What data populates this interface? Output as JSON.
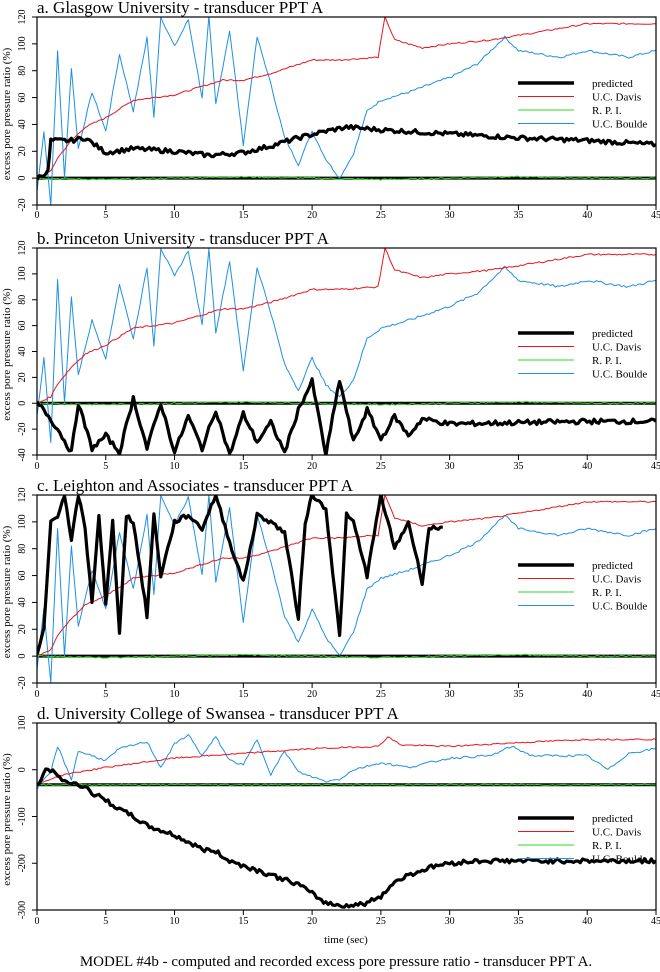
{
  "caption": "MODEL #4b - computed and recorded excess pore pressure ratio - transducer PPT A.",
  "xlabel": "time (sec)",
  "ylabel": "excess pore pressure ratio  (%)",
  "legend": [
    {
      "label": "predicted",
      "color": "#000000",
      "width": 3.5
    },
    {
      "label": "U.C. Davis",
      "color": "#e8161b",
      "width": 1
    },
    {
      "label": "R. P. I.",
      "color": "#2edb1f",
      "width": 1
    },
    {
      "label": "U.C. Boulde",
      "color": "#1e90e6",
      "width": 1
    }
  ],
  "colors": {
    "predicted": "#000000",
    "ucdavis": "#e8161b",
    "rpi": "#2edb1f",
    "boulder": "#1e90e6"
  },
  "chart_data": [
    {
      "type": "line",
      "title": "a. Glasgow University - transducer PPT A",
      "xlabel": "time (sec)",
      "ylabel": "excess pore pressure ratio (%)",
      "xlim": [
        0,
        45
      ],
      "ylim": [
        -20,
        120
      ],
      "xticks": [
        0,
        5,
        10,
        15,
        20,
        25,
        30,
        35,
        40,
        45
      ],
      "yticks": [
        -20,
        0,
        20,
        40,
        60,
        80,
        100,
        120
      ],
      "legend_position": "right-middle",
      "series": [
        {
          "name": "predicted",
          "x": [
            0,
            0.8,
            1.0,
            2.5,
            3.5,
            5,
            7,
            10,
            12.5,
            15,
            17,
            19,
            21,
            22.5,
            25,
            30,
            35,
            40,
            45
          ],
          "y": [
            0,
            5,
            28,
            28,
            30,
            19,
            22,
            20,
            17,
            19,
            24,
            30,
            35,
            38,
            36,
            33,
            30,
            28,
            25
          ]
        },
        {
          "name": "U.C. Davis",
          "x": [
            0,
            1.0,
            1.5,
            2.5,
            3.5,
            5,
            7,
            10,
            13.5,
            15,
            17,
            20,
            22,
            24.8,
            25.3,
            26,
            28,
            30,
            33,
            36,
            40,
            45
          ],
          "y": [
            0,
            5,
            15,
            28,
            38,
            45,
            58,
            62,
            73,
            73,
            78,
            88,
            88,
            90,
            120,
            103,
            97,
            100,
            103,
            108,
            115,
            115
          ]
        },
        {
          "name": "R. P. I.",
          "x": [
            0,
            5,
            10,
            15,
            20,
            25,
            30,
            35,
            40,
            45
          ],
          "y": [
            0,
            -1,
            0,
            1,
            0,
            -1,
            0,
            1,
            0,
            0
          ]
        },
        {
          "name": "U.C. Boulder",
          "x": [
            0,
            0.5,
            1.0,
            1.5,
            2.0,
            2.5,
            3,
            4,
            5,
            6,
            7,
            8,
            8.5,
            9,
            10,
            11,
            12,
            12.5,
            13,
            14,
            15,
            16,
            17,
            18,
            19,
            20,
            21,
            22,
            23,
            24,
            25,
            27,
            30,
            32,
            34,
            35,
            38,
            40,
            43,
            45
          ],
          "y": [
            -10,
            35,
            -20,
            95,
            0,
            82,
            22,
            64,
            35,
            92,
            50,
            105,
            45,
            120,
            98,
            118,
            60,
            120,
            55,
            110,
            25,
            105,
            70,
            30,
            10,
            35,
            14,
            0,
            18,
            50,
            58,
            64,
            75,
            85,
            105,
            95,
            90,
            95,
            90,
            95
          ]
        }
      ]
    },
    {
      "type": "line",
      "title": "b. Princeton University - transducer PPT A",
      "xlabel": "time (sec)",
      "ylabel": "excess pore pressure ratio (%)",
      "xlim": [
        0,
        45
      ],
      "ylim": [
        -40,
        120
      ],
      "xticks": [
        0,
        5,
        10,
        15,
        20,
        25,
        30,
        35,
        40,
        45
      ],
      "yticks": [
        -40,
        -20,
        0,
        20,
        40,
        60,
        80,
        100,
        120
      ],
      "legend_position": "right-middle",
      "series": [
        {
          "name": "predicted",
          "x": [
            0,
            0.5,
            1.5,
            2.5,
            3,
            4,
            5,
            6,
            7,
            8,
            9,
            10,
            11,
            12,
            13,
            14,
            15,
            16,
            17,
            18,
            19,
            20,
            21,
            22,
            23,
            24,
            25,
            26,
            27,
            28,
            30,
            35,
            40,
            45
          ],
          "y": [
            0,
            -5,
            -20,
            -38,
            0,
            -35,
            -25,
            -38,
            4,
            -35,
            0,
            -38,
            -10,
            -35,
            -5,
            -40,
            -8,
            -30,
            -15,
            -38,
            -5,
            17,
            -40,
            18,
            -30,
            -5,
            -28,
            -10,
            -25,
            -12,
            -16,
            -15,
            -14,
            -14
          ]
        },
        {
          "name": "U.C. Davis",
          "x": [
            0,
            1.0,
            1.5,
            2.5,
            3.5,
            5,
            7,
            10,
            13.5,
            15,
            17,
            20,
            22,
            24.8,
            25.3,
            26,
            28,
            30,
            33,
            36,
            40,
            45
          ],
          "y": [
            0,
            5,
            15,
            28,
            38,
            45,
            58,
            62,
            73,
            73,
            78,
            88,
            88,
            90,
            120,
            103,
            97,
            100,
            103,
            108,
            115,
            115
          ]
        },
        {
          "name": "R. P. I.",
          "x": [
            0,
            5,
            10,
            15,
            20,
            25,
            30,
            35,
            40,
            45
          ],
          "y": [
            0,
            -1,
            0,
            1,
            0,
            -1,
            0,
            1,
            0,
            0
          ]
        },
        {
          "name": "U.C. Boulder",
          "x": [
            0,
            0.5,
            1.0,
            1.5,
            2.0,
            2.5,
            3,
            4,
            5,
            6,
            7,
            8,
            8.5,
            9,
            10,
            11,
            12,
            12.5,
            13,
            14,
            15,
            16,
            17,
            18,
            19,
            20,
            21,
            22,
            23,
            24,
            25,
            27,
            30,
            32,
            34,
            35,
            38,
            40,
            43,
            45
          ],
          "y": [
            -10,
            35,
            -30,
            95,
            0,
            82,
            22,
            64,
            35,
            92,
            50,
            105,
            45,
            120,
            98,
            118,
            60,
            120,
            55,
            110,
            25,
            105,
            70,
            30,
            10,
            35,
            14,
            5,
            18,
            50,
            58,
            64,
            75,
            85,
            105,
            95,
            90,
            95,
            90,
            95
          ]
        }
      ]
    },
    {
      "type": "line",
      "title": "c. Leighton and Associates - transducer PPT A",
      "xlabel": "time (sec)",
      "ylabel": "excess pore pressure ratio (%)",
      "xlim": [
        0,
        45
      ],
      "ylim": [
        -20,
        120
      ],
      "xticks": [
        0,
        5,
        10,
        15,
        20,
        25,
        30,
        35,
        40,
        45
      ],
      "yticks": [
        -20,
        0,
        20,
        40,
        60,
        80,
        100,
        120
      ],
      "legend_position": "right-middle",
      "series": [
        {
          "name": "predicted",
          "x": [
            0,
            0.5,
            1.0,
            1.5,
            2,
            2.5,
            3,
            3.5,
            4,
            4.5,
            5,
            5.5,
            6,
            6.5,
            7,
            8,
            8.5,
            9,
            10,
            11,
            12,
            13,
            14,
            15,
            16,
            17,
            18,
            19,
            19.5,
            20,
            21,
            22,
            22.5,
            23,
            24,
            25,
            26,
            27,
            28,
            28.5,
            29.5
          ],
          "y": [
            0,
            20,
            100,
            105,
            120,
            85,
            120,
            95,
            40,
            105,
            38,
            100,
            18,
            105,
            100,
            30,
            105,
            60,
            100,
            105,
            95,
            120,
            85,
            55,
            105,
            100,
            92,
            28,
            100,
            120,
            110,
            15,
            105,
            100,
            60,
            120,
            80,
            100,
            55,
            95,
            96
          ]
        },
        {
          "name": "U.C. Davis",
          "x": [
            0,
            1.0,
            1.5,
            2.5,
            3.5,
            5,
            7,
            10,
            13.5,
            15,
            17,
            20,
            22,
            24.8,
            25.3,
            26,
            28,
            30,
            33,
            36,
            40,
            45
          ],
          "y": [
            0,
            5,
            15,
            28,
            38,
            45,
            58,
            62,
            73,
            73,
            78,
            88,
            88,
            90,
            120,
            103,
            97,
            100,
            103,
            108,
            115,
            115
          ]
        },
        {
          "name": "R. P. I.",
          "x": [
            0,
            5,
            10,
            15,
            20,
            25,
            30,
            35,
            40,
            45
          ],
          "y": [
            0,
            -1,
            0,
            1,
            0,
            -1,
            0,
            1,
            0,
            0
          ]
        },
        {
          "name": "U.C. Boulder",
          "x": [
            0,
            0.5,
            1.0,
            1.5,
            2.0,
            2.5,
            3,
            4,
            5,
            6,
            7,
            8,
            8.5,
            9,
            10,
            11,
            12,
            12.5,
            13,
            14,
            15,
            16,
            17,
            18,
            19,
            20,
            21,
            22,
            23,
            24,
            25,
            27,
            30,
            32,
            34,
            35,
            38,
            40,
            43,
            45
          ],
          "y": [
            -10,
            35,
            -20,
            95,
            0,
            82,
            22,
            64,
            35,
            92,
            50,
            105,
            45,
            120,
            98,
            118,
            60,
            120,
            55,
            110,
            25,
            105,
            70,
            30,
            10,
            35,
            14,
            0,
            18,
            50,
            58,
            64,
            75,
            85,
            105,
            95,
            90,
            95,
            90,
            95
          ]
        }
      ]
    },
    {
      "type": "line",
      "title": "d. University College of Swansea - transducer PPT A",
      "xlabel": "time (sec)",
      "ylabel": "excess pore pressure ratio (%)",
      "xlim": [
        0,
        45
      ],
      "ylim": [
        -300,
        100
      ],
      "xticks": [
        0,
        5,
        10,
        15,
        20,
        25,
        30,
        35,
        40,
        45
      ],
      "yticks": [
        -300,
        -200,
        -100,
        0,
        100
      ],
      "legend_position": "right-middle",
      "series": [
        {
          "name": "predicted",
          "x": [
            0,
            0.8,
            1.5,
            2.5,
            3.5,
            4,
            5,
            6,
            7,
            8,
            9,
            10,
            11,
            12,
            13,
            14,
            15,
            17,
            19,
            20,
            21,
            22,
            23,
            24,
            25,
            26,
            27,
            28,
            29,
            30,
            32,
            35,
            40,
            45
          ],
          "y": [
            -35,
            5,
            -15,
            -30,
            -35,
            -50,
            -65,
            -85,
            -100,
            -120,
            -130,
            -140,
            -155,
            -170,
            -175,
            -195,
            -205,
            -225,
            -245,
            -265,
            -285,
            -290,
            -290,
            -285,
            -270,
            -240,
            -225,
            -215,
            -205,
            -200,
            -195,
            -195,
            -195,
            -195
          ]
        },
        {
          "name": "U.C. Davis",
          "x": [
            0,
            2,
            5,
            10,
            15,
            20,
            24.8,
            25.5,
            26.5,
            30,
            35,
            40,
            45
          ],
          "y": [
            -30,
            -10,
            5,
            25,
            35,
            45,
            50,
            70,
            53,
            50,
            58,
            65,
            65
          ]
        },
        {
          "name": "R. P. I.",
          "x": [
            0,
            45
          ],
          "y": [
            -32,
            -32
          ]
        },
        {
          "name": "U.C. Boulder",
          "x": [
            0,
            1.0,
            1.5,
            2.5,
            3,
            5,
            6,
            8,
            9,
            10,
            11,
            12,
            13,
            14,
            15,
            16,
            17,
            18,
            19,
            20,
            21,
            22,
            23,
            25,
            27,
            30,
            33,
            34.5,
            36,
            40,
            41.5,
            43,
            45
          ],
          "y": [
            -40,
            -5,
            50,
            -20,
            40,
            20,
            45,
            60,
            5,
            55,
            75,
            30,
            70,
            20,
            10,
            65,
            -10,
            40,
            -5,
            -15,
            -25,
            -20,
            0,
            15,
            5,
            25,
            30,
            50,
            30,
            30,
            0,
            35,
            45
          ]
        }
      ]
    }
  ]
}
